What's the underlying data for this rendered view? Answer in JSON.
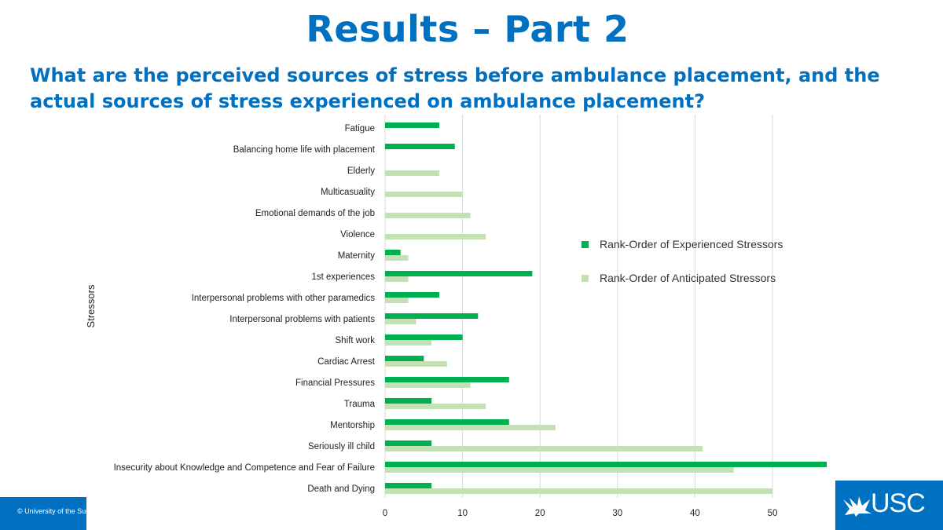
{
  "slide": {
    "title": "Results – Part 2",
    "question": "What are the perceived sources of stress before ambulance placement, and the actual sources of stress experienced on ambulance placement?",
    "footer_text": "© University of the Sunshine Coast",
    "logo_text": "USC",
    "accent_color": "#0070C0"
  },
  "chart_data": {
    "type": "bar",
    "orientation": "horizontal",
    "title": "",
    "xlabel": "",
    "ylabel": "Stressors",
    "xlim": [
      0,
      55
    ],
    "xticks": [
      0,
      10,
      20,
      30,
      40,
      50
    ],
    "grid": true,
    "legend_position": "right",
    "categories": [
      "Fatigue",
      "Balancing home life with placement",
      "Elderly",
      "Multicasuality",
      "Emotional demands of the job",
      "Violence",
      "Maternity",
      "1st experiences",
      "Interpersonal problems with other paramedics",
      "Interpersonal problems with patients",
      "Shift work",
      "Cardiac Arrest",
      "Financial Pressures",
      "Trauma",
      "Mentorship",
      "Seriously ill child",
      "Insecurity about Knowledge and Competence and Fear of Failure",
      "Death and Dying"
    ],
    "series": [
      {
        "name": "Rank-Order of Experienced Stressors",
        "color": "#00B050",
        "values": [
          7,
          9,
          null,
          null,
          null,
          null,
          2,
          19,
          7,
          12,
          10,
          5,
          16,
          6,
          16,
          6,
          57,
          6
        ]
      },
      {
        "name": "Rank-Order of Anticipated Stressors",
        "color": "#C5E0B4",
        "values": [
          null,
          null,
          7,
          10,
          11,
          13,
          3,
          3,
          3,
          4,
          6,
          8,
          11,
          13,
          22,
          41,
          45,
          50
        ]
      }
    ]
  }
}
